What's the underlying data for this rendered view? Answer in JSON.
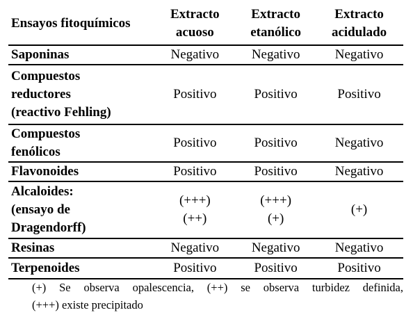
{
  "table": {
    "headers": [
      [
        "Ensayos fitoquímicos"
      ],
      [
        "Extracto",
        "acuoso"
      ],
      [
        "Extracto",
        "etanólico"
      ],
      [
        "Extracto",
        "acidulado"
      ]
    ],
    "rows": [
      {
        "label": [
          "Saponinas"
        ],
        "cells": [
          [
            "Negativo"
          ],
          [
            "Negativo"
          ],
          [
            "Negativo"
          ]
        ]
      },
      {
        "label": [
          "Compuestos",
          "reductores",
          "(reactivo Fehling)"
        ],
        "cells": [
          [
            "Positivo"
          ],
          [
            "Positivo"
          ],
          [
            "Positivo"
          ]
        ]
      },
      {
        "label": [
          "Compuestos",
          "fenólicos"
        ],
        "cells": [
          [
            "Positivo"
          ],
          [
            "Positivo"
          ],
          [
            "Negativo"
          ]
        ]
      },
      {
        "label": [
          "Flavonoides"
        ],
        "cells": [
          [
            "Positivo"
          ],
          [
            "Positivo"
          ],
          [
            "Negativo"
          ]
        ]
      },
      {
        "label": [
          "Alcaloides:",
          "(ensayo de",
          "Dragendorff)"
        ],
        "cells": [
          [
            "(+++)",
            "(++)"
          ],
          [
            "(+++)",
            "(+)"
          ],
          [
            "(+)"
          ]
        ]
      },
      {
        "label": [
          "Resinas"
        ],
        "cells": [
          [
            "Negativo"
          ],
          [
            "Negativo"
          ],
          [
            "Negativo"
          ]
        ]
      },
      {
        "label": [
          "Terpenoides"
        ],
        "cells": [
          [
            "Positivo"
          ],
          [
            "Positivo"
          ],
          [
            "Positivo"
          ]
        ]
      }
    ]
  },
  "footnote": {
    "line1": "(+) Se observa opalescencia, (++) se observa turbidez definida,",
    "line2": "(+++) existe precipitado"
  }
}
